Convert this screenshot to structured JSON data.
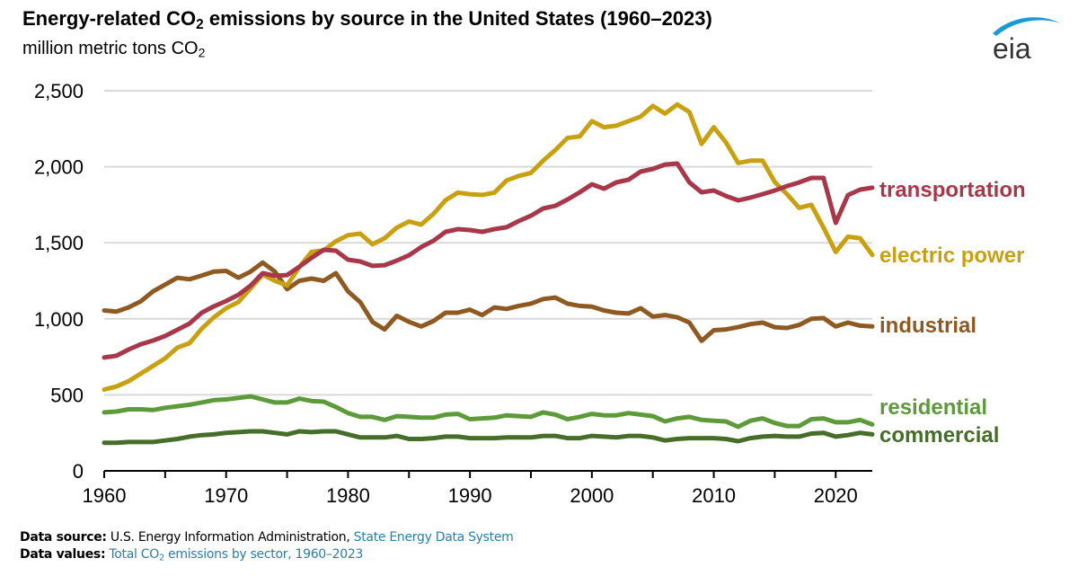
{
  "header": {
    "title_pre": "Energy-related CO",
    "title_sub": "2",
    "title_post": " emissions by source in the United States (1960–2023)",
    "subtitle_pre": "million metric tons CO",
    "subtitle_sub": "2"
  },
  "logo": {
    "text": "eia",
    "icon": "eia-swoosh-logo",
    "color": "#1a9ad6"
  },
  "footer": {
    "source_label": "Data source:",
    "source_text": " U.S. Energy Information Administration, ",
    "source_link": "State Energy Data System",
    "values_label": "Data values:",
    "values_link_pre": " Total CO",
    "values_link_sub": "2",
    "values_link_post": " emissions by sector, 1960–2023"
  },
  "chart_data": {
    "type": "line",
    "title": "Energy-related CO2 emissions by source in the United States (1960–2023)",
    "ylabel": "million metric tons CO2",
    "xlabel": "",
    "xlim": [
      1960,
      2023
    ],
    "ylim": [
      0,
      2500
    ],
    "yticks": [
      0,
      500,
      1000,
      1500,
      2000,
      2500
    ],
    "ytick_labels": [
      "0",
      "500",
      "1,000",
      "1,500",
      "2,000",
      "2,500"
    ],
    "xticks": [
      1960,
      1965,
      1970,
      1975,
      1980,
      1985,
      1990,
      1995,
      2000,
      2005,
      2010,
      2015,
      2020
    ],
    "xtick_labels": [
      "1960",
      "",
      "1970",
      "",
      "1980",
      "",
      "1990",
      "",
      "2000",
      "",
      "2010",
      "",
      "2020"
    ],
    "grid": "horizontal",
    "legend": "direct-labels-right",
    "x": [
      1960,
      1961,
      1962,
      1963,
      1964,
      1965,
      1966,
      1967,
      1968,
      1969,
      1970,
      1971,
      1972,
      1973,
      1974,
      1975,
      1976,
      1977,
      1978,
      1979,
      1980,
      1981,
      1982,
      1983,
      1984,
      1985,
      1986,
      1987,
      1988,
      1989,
      1990,
      1991,
      1992,
      1993,
      1994,
      1995,
      1996,
      1997,
      1998,
      1999,
      2000,
      2001,
      2002,
      2003,
      2004,
      2005,
      2006,
      2007,
      2008,
      2009,
      2010,
      2011,
      2012,
      2013,
      2014,
      2015,
      2016,
      2017,
      2018,
      2019,
      2020,
      2021,
      2022,
      2023
    ],
    "series": [
      {
        "name": "transportation",
        "color": "#a8374a",
        "values": [
          745,
          757,
          798,
          833,
          857,
          887,
          928,
          969,
          1040,
          1082,
          1117,
          1158,
          1218,
          1300,
          1283,
          1288,
          1342,
          1401,
          1454,
          1448,
          1389,
          1377,
          1348,
          1353,
          1383,
          1418,
          1472,
          1513,
          1572,
          1590,
          1584,
          1572,
          1590,
          1602,
          1643,
          1678,
          1726,
          1743,
          1785,
          1832,
          1885,
          1856,
          1897,
          1915,
          1968,
          1986,
          2015,
          2021,
          1897,
          1832,
          1844,
          1808,
          1779,
          1797,
          1820,
          1844,
          1873,
          1897,
          1927,
          1927,
          1631,
          1814,
          1850,
          1862
        ]
      },
      {
        "name": "electric power",
        "color": "#c9a010",
        "values": [
          535,
          555,
          590,
          640,
          690,
          740,
          810,
          840,
          935,
          1010,
          1070,
          1110,
          1200,
          1290,
          1250,
          1220,
          1340,
          1440,
          1450,
          1510,
          1550,
          1560,
          1490,
          1530,
          1600,
          1640,
          1620,
          1690,
          1780,
          1830,
          1820,
          1815,
          1830,
          1910,
          1940,
          1960,
          2040,
          2110,
          2190,
          2200,
          2300,
          2260,
          2270,
          2300,
          2330,
          2400,
          2350,
          2410,
          2360,
          2150,
          2260,
          2160,
          2025,
          2040,
          2040,
          1900,
          1820,
          1730,
          1750,
          1600,
          1440,
          1540,
          1530,
          1420
        ]
      },
      {
        "name": "industrial",
        "color": "#8f5a22",
        "values": [
          1055,
          1048,
          1075,
          1115,
          1180,
          1225,
          1270,
          1260,
          1285,
          1310,
          1315,
          1270,
          1310,
          1370,
          1310,
          1195,
          1250,
          1265,
          1250,
          1300,
          1180,
          1110,
          980,
          930,
          1020,
          980,
          950,
          985,
          1040,
          1040,
          1060,
          1025,
          1075,
          1065,
          1085,
          1100,
          1130,
          1140,
          1100,
          1085,
          1080,
          1055,
          1040,
          1035,
          1070,
          1015,
          1025,
          1010,
          975,
          855,
          925,
          930,
          945,
          965,
          975,
          945,
          940,
          960,
          1000,
          1005,
          950,
          975,
          955,
          950
        ]
      },
      {
        "name": "residential",
        "color": "#5d9b3a",
        "values": [
          385,
          390,
          405,
          405,
          400,
          415,
          425,
          435,
          450,
          465,
          470,
          480,
          490,
          470,
          450,
          450,
          475,
          460,
          455,
          420,
          380,
          355,
          355,
          335,
          360,
          355,
          350,
          350,
          370,
          375,
          340,
          345,
          350,
          365,
          360,
          355,
          385,
          370,
          340,
          355,
          375,
          365,
          365,
          380,
          370,
          360,
          325,
          345,
          355,
          335,
          330,
          325,
          290,
          330,
          345,
          315,
          295,
          295,
          340,
          345,
          320,
          320,
          335,
          305
        ]
      },
      {
        "name": "commercial",
        "color": "#456e29",
        "values": [
          185,
          185,
          190,
          190,
          190,
          200,
          210,
          225,
          235,
          240,
          250,
          255,
          260,
          260,
          250,
          240,
          260,
          255,
          260,
          260,
          240,
          220,
          220,
          220,
          230,
          210,
          210,
          215,
          225,
          225,
          215,
          215,
          215,
          220,
          220,
          220,
          230,
          230,
          215,
          215,
          230,
          225,
          220,
          230,
          230,
          220,
          200,
          210,
          215,
          215,
          215,
          210,
          195,
          215,
          225,
          230,
          225,
          225,
          245,
          250,
          225,
          235,
          250,
          240
        ]
      }
    ]
  }
}
